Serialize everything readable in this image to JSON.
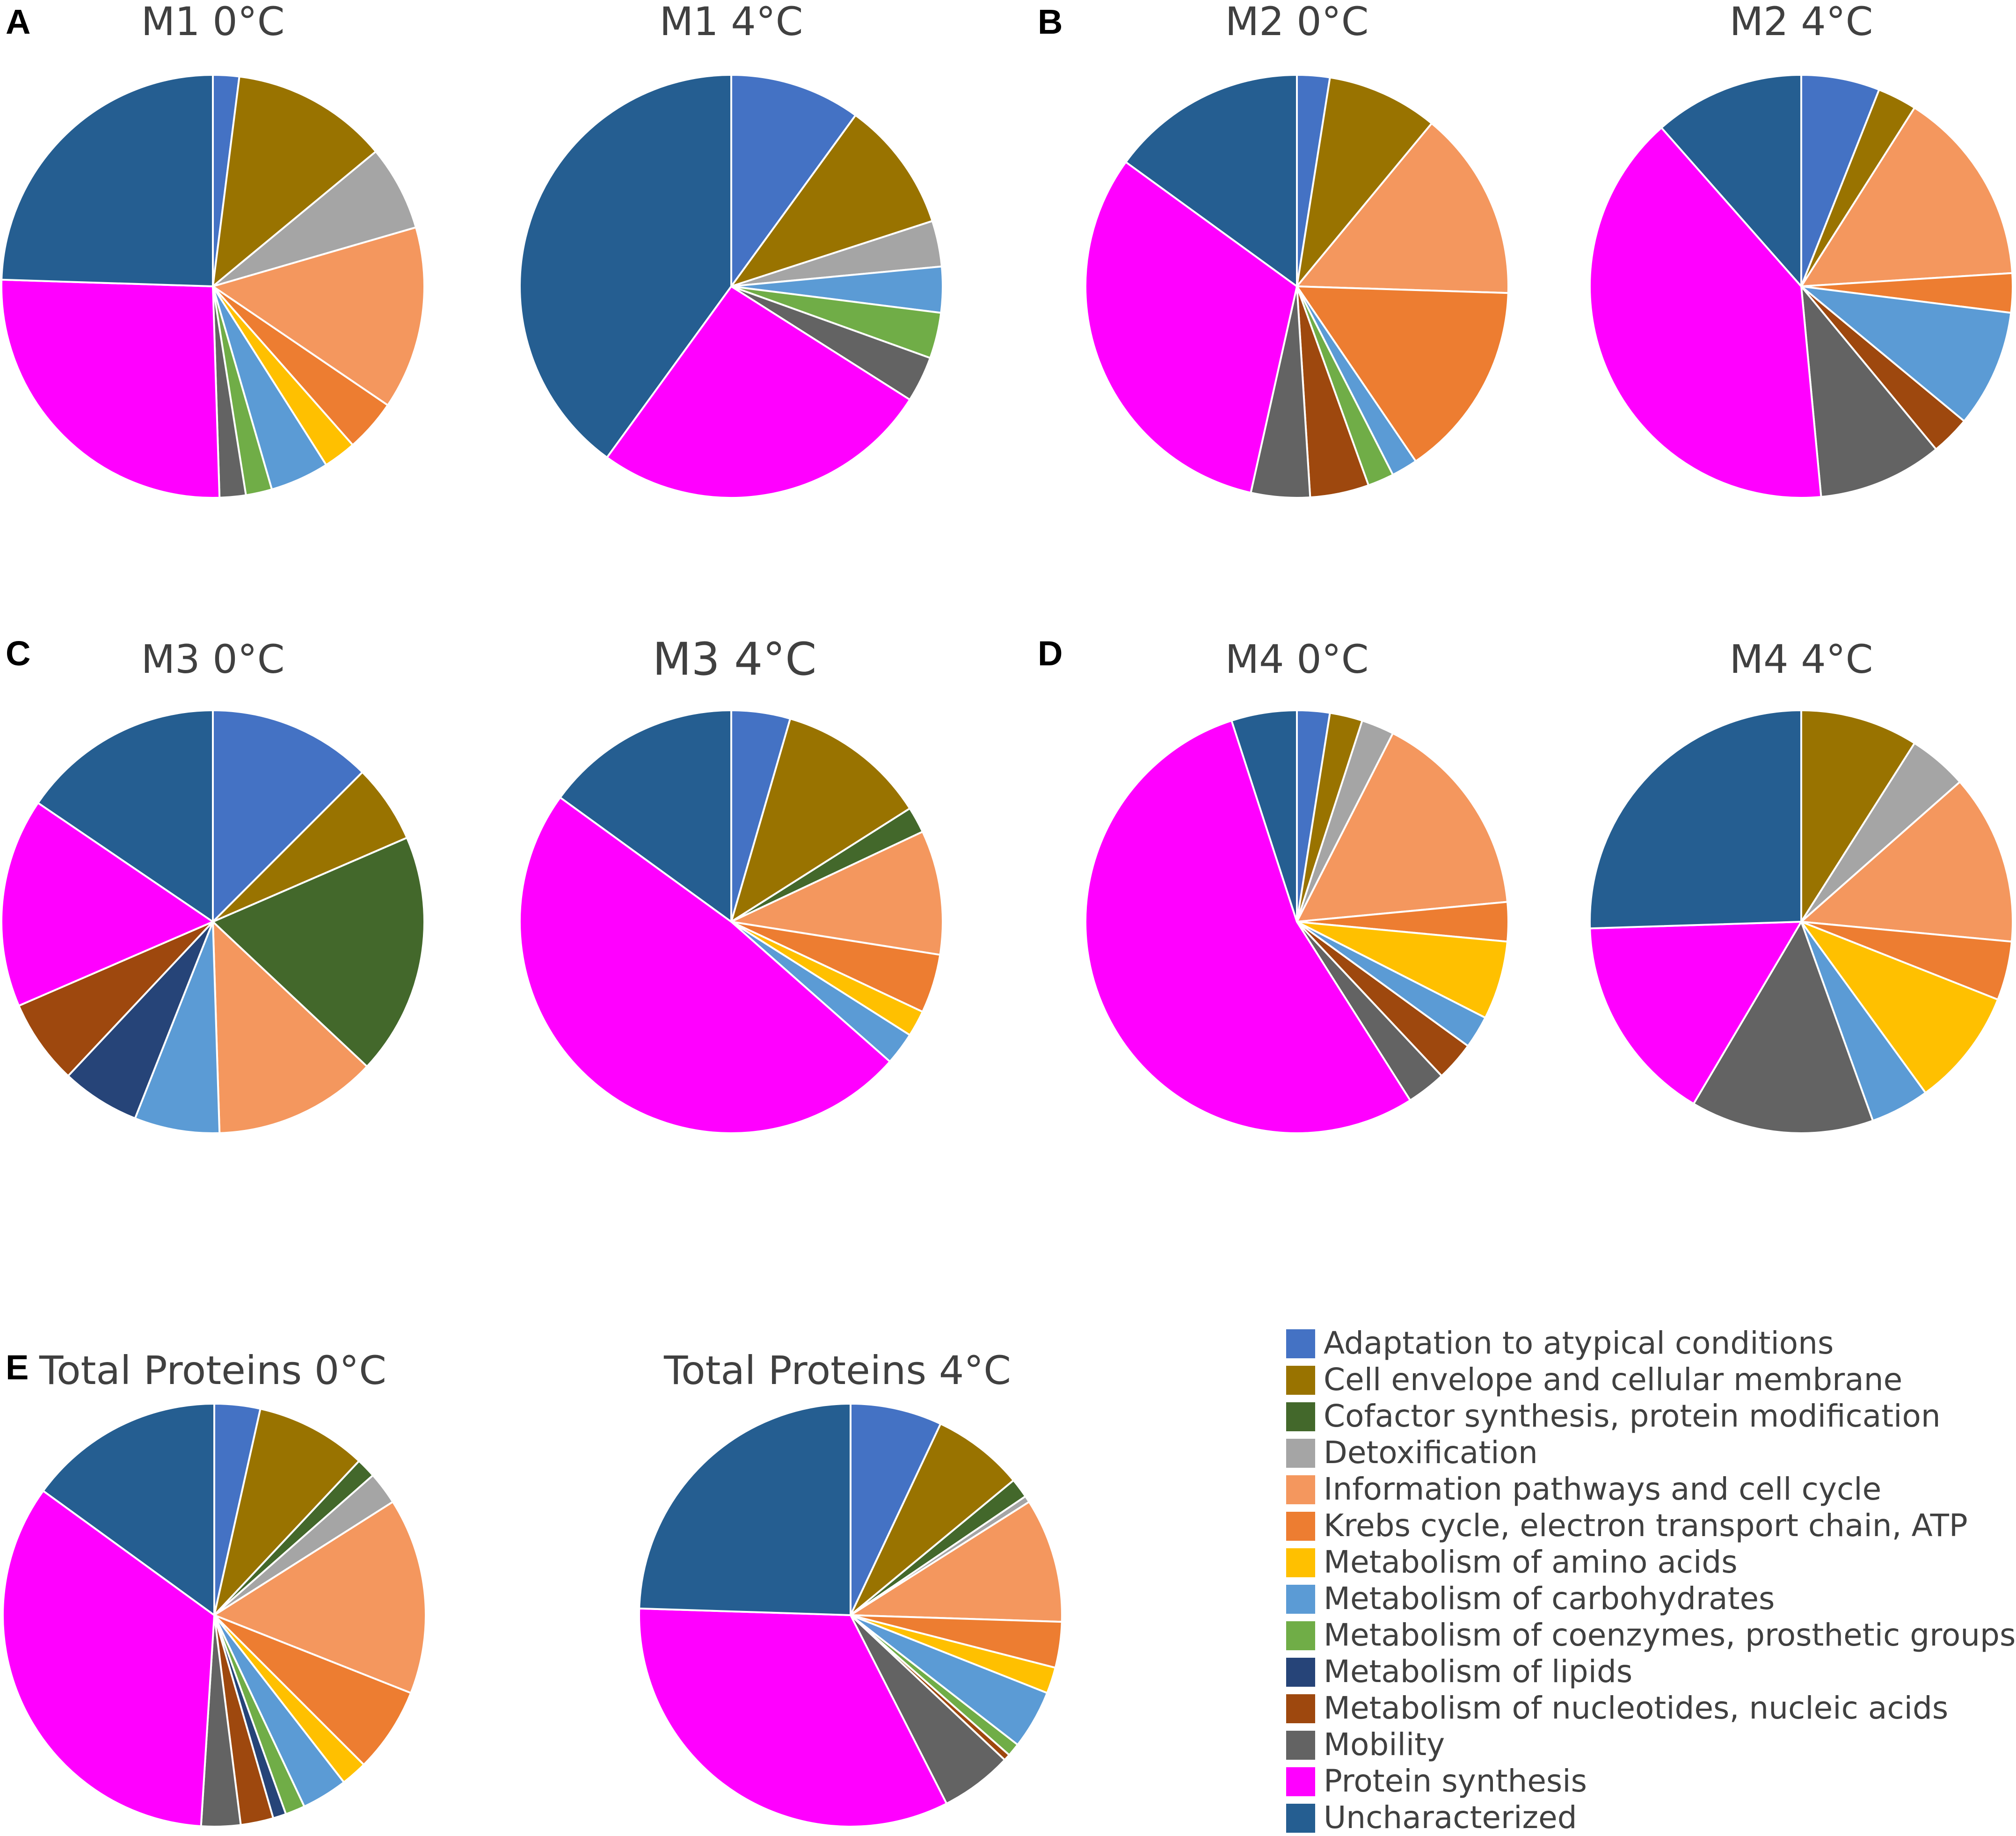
{
  "categories": [
    {
      "label": "Adaptation to atypical conditions",
      "color": "#4472C4"
    },
    {
      "label": "Cell envelope and cellular membrane",
      "color": "#997300"
    },
    {
      "label": "Cofactor synthesis, protein modification",
      "color": "#43682B"
    },
    {
      "label": "Detoxification",
      "color": "#A5A5A5"
    },
    {
      "label": "Information pathways and cell cycle",
      "color": "#F4975E"
    },
    {
      "label": "Krebs cycle, electron transport chain, ATP",
      "color": "#ED7D31"
    },
    {
      "label": "Metabolism of amino acids",
      "color": "#FFC000"
    },
    {
      "label": "Metabolism of carbohydrates",
      "color": "#5B9BD5"
    },
    {
      "label": "Metabolism of coenzymes, prosthetic groups",
      "color": "#70AD47"
    },
    {
      "label": "Metabolism of lipids",
      "color": "#264478"
    },
    {
      "label": "Metabolism of nucleotides, nucleic acids",
      "color": "#9E480E"
    },
    {
      "label": "Mobility",
      "color": "#636363"
    },
    {
      "label": "Protein synthesis",
      "color": "#FF00FF"
    },
    {
      "label": "Uncharacterized",
      "color": "#255E91"
    }
  ],
  "panels": [
    {
      "letter": "A"
    },
    {
      "letter": "B"
    },
    {
      "letter": "C"
    },
    {
      "letter": "D"
    },
    {
      "letter": "E"
    }
  ],
  "chart_data": [
    {
      "type": "pie",
      "panel": "A",
      "title": "M1 0°C",
      "unit": "percent",
      "values": [
        2.0,
        12.0,
        0,
        6.5,
        14.0,
        4.0,
        2.5,
        4.5,
        2.0,
        0,
        0,
        2.0,
        26.0,
        24.5
      ]
    },
    {
      "type": "pie",
      "panel": "A",
      "title": "M1 4°C",
      "unit": "percent",
      "values": [
        10.0,
        10.0,
        0,
        3.5,
        0,
        0,
        0,
        3.5,
        3.5,
        0,
        0,
        3.5,
        26.0,
        40.0
      ]
    },
    {
      "type": "pie",
      "panel": "B",
      "title": "M2 0°C",
      "unit": "percent",
      "values": [
        2.5,
        8.5,
        0,
        0,
        14.5,
        15.0,
        0,
        2.0,
        2.0,
        0,
        4.5,
        4.5,
        31.5,
        15.0
      ]
    },
    {
      "type": "pie",
      "panel": "B",
      "title": "M2 4°C",
      "unit": "percent",
      "values": [
        6.0,
        3.0,
        0,
        0,
        15.0,
        3.0,
        0,
        9.0,
        0,
        0,
        3.0,
        9.5,
        40.0,
        11.5
      ]
    },
    {
      "type": "pie",
      "panel": "C",
      "title": "M3 0°C",
      "unit": "percent",
      "values": [
        12.5,
        6.0,
        18.5,
        0,
        12.5,
        0,
        0,
        6.5,
        0,
        6.0,
        6.5,
        0,
        16.0,
        15.5
      ]
    },
    {
      "type": "pie",
      "panel": "C",
      "title": "M3 4°C",
      "unit": "percent",
      "values": [
        4.5,
        11.5,
        2.0,
        0,
        9.5,
        4.5,
        2.0,
        2.5,
        0,
        0,
        0,
        0,
        48.5,
        15.0
      ]
    },
    {
      "type": "pie",
      "panel": "D",
      "title": "M4 0°C",
      "unit": "percent",
      "values": [
        2.5,
        2.5,
        0,
        2.5,
        16.0,
        3.0,
        6.0,
        2.5,
        0,
        0,
        3.0,
        3.0,
        54.0,
        5.0
      ]
    },
    {
      "type": "pie",
      "panel": "D",
      "title": "M4 4°C",
      "unit": "percent",
      "values": [
        0,
        9.0,
        0,
        4.5,
        13.0,
        4.5,
        9.0,
        4.5,
        0,
        0,
        0,
        14.0,
        16.0,
        25.5
      ]
    },
    {
      "type": "pie",
      "panel": "E",
      "title": "Total Proteins 0°C",
      "unit": "percent",
      "values": [
        3.5,
        8.5,
        1.5,
        2.5,
        15.0,
        6.5,
        2.0,
        3.5,
        1.5,
        1.0,
        2.5,
        3.0,
        34.0,
        15.0
      ]
    },
    {
      "type": "pie",
      "panel": "E",
      "title": "Total Proteins 4°C",
      "unit": "percent",
      "values": [
        7.0,
        7.0,
        1.5,
        0.5,
        9.5,
        3.5,
        2.0,
        4.5,
        1.0,
        0,
        0.5,
        5.5,
        33.0,
        24.5
      ]
    }
  ]
}
